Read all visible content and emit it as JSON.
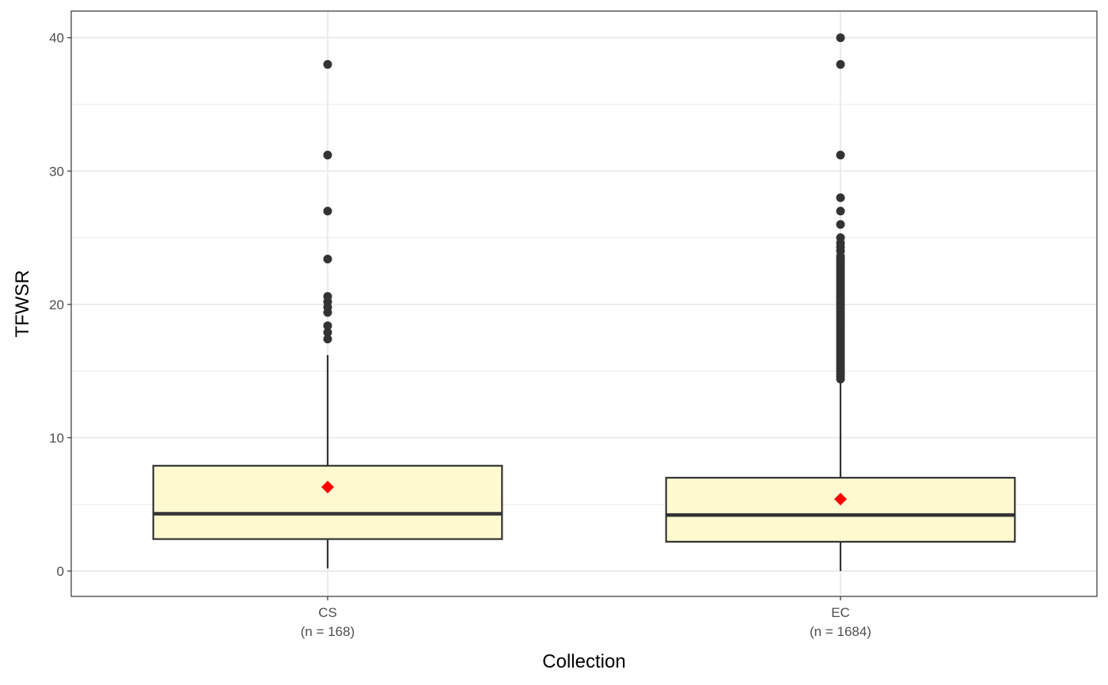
{
  "chart_data": {
    "type": "boxplot",
    "xlabel": "Collection",
    "ylabel": "TFWSR",
    "ylim": [
      -1.9,
      42.0
    ],
    "yticks": [
      0,
      10,
      20,
      30,
      40
    ],
    "grid": true,
    "legend": "none",
    "colors": {
      "box_fill": "#fff9d0",
      "box_stroke": "#333333",
      "outlier": "#333333",
      "mean_marker": "#ff0000",
      "grid": "#ebebeb",
      "panel_border": "#333333"
    },
    "groups": [
      {
        "category": "CS",
        "n_label": "(n = 168)",
        "whisker_low": 0.2,
        "q1": 2.4,
        "median": 4.3,
        "q3": 7.9,
        "whisker_high": 16.2,
        "mean": 6.3,
        "outliers": [
          17.4,
          17.9,
          18.4,
          19.4,
          19.8,
          20.2,
          20.6,
          23.4,
          27.0,
          31.2,
          38.0
        ]
      },
      {
        "category": "EC",
        "n_label": "(n = 1684)",
        "whisker_low": 0.0,
        "q1": 2.2,
        "median": 4.2,
        "q3": 7.0,
        "whisker_high": 14.4,
        "mean": 5.4,
        "outliers": [
          14.4,
          14.6,
          14.8,
          15.0,
          15.2,
          15.4,
          15.6,
          15.8,
          16.0,
          16.2,
          16.4,
          16.6,
          16.8,
          17.0,
          17.2,
          17.4,
          17.6,
          17.8,
          18.0,
          18.2,
          18.4,
          18.6,
          18.8,
          19.0,
          19.2,
          19.4,
          19.6,
          19.8,
          20.0,
          20.2,
          20.4,
          20.6,
          20.8,
          21.0,
          21.2,
          21.4,
          21.6,
          21.8,
          22.0,
          22.2,
          22.4,
          22.6,
          22.8,
          23.0,
          23.2,
          23.4,
          23.6,
          24.0,
          24.3,
          24.6,
          25.0,
          26.0,
          27.0,
          28.0,
          31.2,
          38.0,
          40.0
        ]
      }
    ]
  }
}
